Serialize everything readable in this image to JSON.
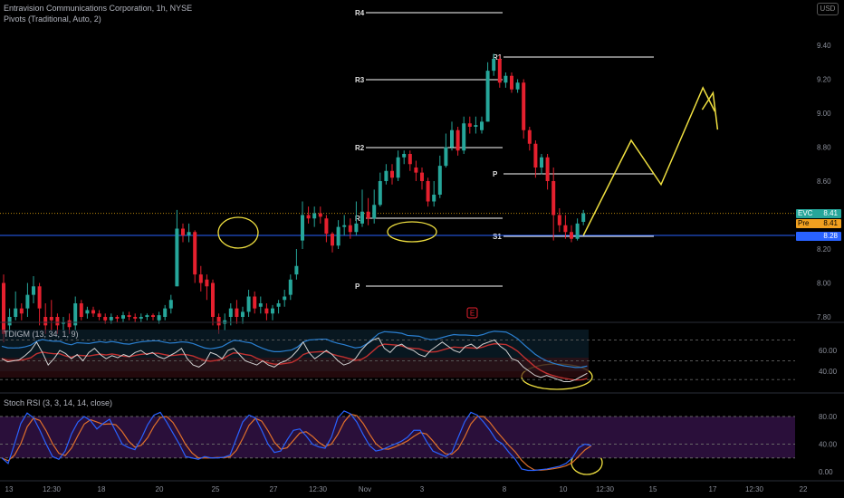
{
  "chart_title": "Entravision Communications Corporation, 1h, NYSE",
  "pivots_label": "Pivots (Traditional, Auto, 2)",
  "currency_label": "USD",
  "tdi_label": "TDIGM (13, 34, 1, 9)",
  "stoch_label": "Stoch RSI (3, 3, 14, 14, close)",
  "earnings_marker": "E",
  "tags": [
    {
      "label": "EVC",
      "value": "8.41",
      "color": "#26a69a"
    },
    {
      "label": "Pre",
      "value": "8.41",
      "color": "#f0a020"
    },
    {
      "label": "",
      "value": "8.28",
      "color": "#2962ff"
    }
  ],
  "colors": {
    "up": "#26a69a",
    "down": "#e5202e",
    "annotation": "#f0e040",
    "pivot": "#ffffff",
    "support_line": "#2962ff",
    "tdi_price": "#d0d0d0",
    "tdi_band": "#2a7fd0",
    "tdi_signal": "#c03030",
    "stoch_k": "#2962ff",
    "stoch_d": "#e0702a",
    "stoch_bg": "#2a0f3a"
  },
  "chart_data": {
    "type": "candlestick",
    "y_axis_ticks": [
      "9.40",
      "9.20",
      "9.00",
      "8.80",
      "8.60",
      "8.40",
      "8.20",
      "8.00",
      "7.80"
    ],
    "y_range": [
      7.78,
      9.48
    ],
    "x_axis_ticks": [
      "13",
      "12:30",
      "18",
      "20",
      "25",
      "27",
      "12:30",
      "Nov",
      "3",
      "8",
      "10",
      "12:30",
      "15",
      "17",
      "12:30",
      "22"
    ],
    "horizontal_lines": [
      {
        "name": "current_price",
        "value": 8.41,
        "style": "dotted"
      },
      {
        "name": "support",
        "value": 8.28,
        "style": "solid"
      }
    ],
    "pivot_sets": [
      {
        "levels": [
          {
            "label": "R4",
            "value": 9.46
          },
          {
            "label": "R3",
            "value": 9.2
          },
          {
            "label": "R2",
            "value": 8.8
          },
          {
            "label": "R1",
            "value": 8.4
          },
          {
            "label": "P",
            "value": 7.99
          }
        ]
      },
      {
        "levels": [
          {
            "label": "R1",
            "value": 9.33
          },
          {
            "label": "P",
            "value": 8.64
          },
          {
            "label": "S1",
            "value": 8.28
          }
        ]
      }
    ],
    "candles": [
      [
        8.0,
        7.7,
        8.05,
        7.65
      ],
      [
        7.75,
        7.8,
        7.85,
        7.7
      ],
      [
        7.8,
        7.85,
        7.95,
        7.78
      ],
      [
        7.85,
        7.82,
        7.88,
        7.78
      ],
      [
        7.85,
        7.93,
        8.0,
        7.8
      ],
      [
        7.93,
        7.98,
        8.04,
        7.88
      ],
      [
        7.98,
        7.85,
        8.0,
        7.75
      ],
      [
        7.8,
        7.75,
        7.88,
        7.7
      ],
      [
        7.8,
        7.78,
        7.9,
        7.72
      ],
      [
        7.8,
        7.75,
        7.82,
        7.7
      ],
      [
        7.76,
        7.77,
        7.8,
        7.72
      ],
      [
        7.78,
        7.74,
        7.82,
        7.7
      ],
      [
        7.75,
        7.88,
        7.92,
        7.72
      ],
      [
        7.88,
        7.8,
        7.9,
        7.78
      ],
      [
        7.82,
        7.84,
        7.86,
        7.79
      ],
      [
        7.84,
        7.82,
        7.86,
        7.8
      ],
      [
        7.82,
        7.8,
        7.84,
        7.78
      ],
      [
        7.8,
        7.78,
        7.82,
        7.76
      ],
      [
        7.78,
        7.8,
        7.82,
        7.76
      ],
      [
        7.8,
        7.79,
        7.81,
        7.77
      ],
      [
        7.79,
        7.81,
        7.83,
        7.77
      ],
      [
        7.81,
        7.8,
        7.83,
        7.78
      ],
      [
        7.8,
        7.79,
        7.82,
        7.77
      ],
      [
        7.79,
        7.8,
        7.82,
        7.77
      ],
      [
        7.8,
        7.81,
        7.82,
        7.78
      ],
      [
        7.81,
        7.8,
        7.82,
        7.78
      ],
      [
        7.78,
        7.81,
        7.83,
        7.76
      ],
      [
        7.8,
        7.85,
        7.87,
        7.78
      ],
      [
        7.85,
        7.9,
        7.93,
        7.82
      ],
      [
        7.98,
        8.32,
        8.43,
        7.98
      ],
      [
        8.32,
        8.28,
        8.35,
        8.24
      ],
      [
        8.28,
        8.3,
        8.35,
        8.24
      ],
      [
        8.3,
        8.05,
        8.31,
        8.0
      ],
      [
        8.05,
        8.0,
        8.1,
        7.95
      ],
      [
        8.02,
        7.98,
        8.05,
        7.9
      ],
      [
        8.0,
        7.8,
        8.02,
        7.75
      ],
      [
        7.8,
        7.75,
        7.82,
        7.7
      ],
      [
        7.76,
        7.78,
        7.82,
        7.72
      ],
      [
        7.8,
        7.85,
        7.88,
        7.75
      ],
      [
        7.85,
        7.8,
        7.9,
        7.76
      ],
      [
        7.8,
        7.83,
        7.86,
        7.76
      ],
      [
        7.83,
        7.92,
        7.96,
        7.8
      ],
      [
        7.92,
        7.85,
        7.95,
        7.82
      ],
      [
        7.86,
        7.88,
        7.92,
        7.82
      ],
      [
        7.85,
        7.82,
        7.88,
        7.78
      ],
      [
        7.82,
        7.85,
        7.87,
        7.78
      ],
      [
        7.86,
        7.88,
        7.9,
        7.82
      ],
      [
        7.9,
        7.92,
        7.96,
        7.86
      ],
      [
        7.93,
        8.02,
        8.05,
        7.9
      ],
      [
        8.05,
        8.1,
        8.2,
        8.02
      ],
      [
        8.25,
        8.4,
        8.48,
        8.2
      ],
      [
        8.4,
        8.38,
        8.45,
        8.35
      ],
      [
        8.38,
        8.41,
        8.45,
        8.33
      ],
      [
        8.41,
        8.39,
        8.45,
        8.35
      ],
      [
        8.38,
        8.29,
        8.4,
        8.24
      ],
      [
        8.29,
        8.22,
        8.3,
        8.18
      ],
      [
        8.22,
        8.33,
        8.37,
        8.2
      ],
      [
        8.33,
        8.34,
        8.4,
        8.28
      ],
      [
        8.34,
        8.3,
        8.38,
        8.26
      ],
      [
        8.3,
        8.35,
        8.48,
        8.28
      ],
      [
        8.35,
        8.42,
        8.55,
        8.33
      ],
      [
        8.42,
        8.38,
        8.5,
        8.34
      ],
      [
        8.38,
        8.46,
        8.55,
        8.35
      ],
      [
        8.46,
        8.6,
        8.65,
        8.45
      ],
      [
        8.6,
        8.66,
        8.7,
        8.58
      ],
      [
        8.66,
        8.62,
        8.7,
        8.58
      ],
      [
        8.62,
        8.74,
        8.78,
        8.6
      ],
      [
        8.74,
        8.76,
        8.78,
        8.7
      ],
      [
        8.76,
        8.7,
        8.78,
        8.66
      ],
      [
        8.68,
        8.65,
        8.72,
        8.6
      ],
      [
        8.65,
        8.6,
        8.68,
        8.55
      ],
      [
        8.6,
        8.48,
        8.62,
        8.45
      ],
      [
        8.48,
        8.52,
        8.6,
        8.45
      ],
      [
        8.52,
        8.69,
        8.75,
        8.5
      ],
      [
        8.69,
        8.8,
        8.88,
        8.68
      ],
      [
        8.8,
        8.9,
        8.95,
        8.78
      ],
      [
        8.9,
        8.78,
        8.92,
        8.75
      ],
      [
        8.78,
        8.94,
        8.98,
        8.76
      ],
      [
        8.94,
        8.92,
        8.98,
        8.88
      ],
      [
        8.92,
        8.93,
        8.98,
        8.88
      ],
      [
        8.9,
        8.95,
        8.98,
        8.88
      ],
      [
        8.95,
        9.25,
        9.3,
        8.95
      ],
      [
        9.25,
        9.32,
        9.35,
        9.22
      ],
      [
        9.32,
        9.18,
        9.34,
        9.15
      ],
      [
        9.18,
        9.22,
        9.24,
        9.15
      ],
      [
        9.22,
        9.14,
        9.24,
        9.12
      ],
      [
        9.14,
        9.18,
        9.2,
        9.12
      ],
      [
        9.18,
        8.9,
        9.2,
        8.85
      ],
      [
        8.9,
        8.82,
        8.92,
        8.78
      ],
      [
        8.82,
        8.68,
        8.84,
        8.62
      ],
      [
        8.68,
        8.74,
        8.76,
        8.64
      ],
      [
        8.74,
        8.6,
        8.76,
        8.55
      ],
      [
        8.6,
        8.4,
        8.68,
        8.25
      ],
      [
        8.4,
        8.34,
        8.44,
        8.3
      ],
      [
        8.34,
        8.3,
        8.4,
        8.26
      ],
      [
        8.3,
        8.26,
        8.34,
        8.24
      ],
      [
        8.26,
        8.35,
        8.38,
        8.25
      ],
      [
        8.36,
        8.41,
        8.43,
        8.34
      ]
    ],
    "projection_path": [
      [
        8.28,
        0
      ],
      [
        8.84,
        8
      ],
      [
        8.58,
        13
      ],
      [
        9.15,
        20
      ],
      [
        9.01,
        22
      ]
    ]
  },
  "tdi_axis_ticks": [
    "60.00",
    "40.00"
  ],
  "stoch_axis_ticks": [
    "80.00",
    "40.00",
    "0.00"
  ],
  "tdi_price_line": [
    52,
    49,
    50,
    51,
    55,
    60,
    68,
    58,
    46,
    52,
    60,
    57,
    52,
    56,
    50,
    58,
    62,
    56,
    52,
    55,
    53,
    56,
    54,
    58,
    60,
    56,
    58,
    54,
    52,
    55,
    58,
    62,
    52,
    46,
    44,
    48,
    58,
    56,
    52,
    60,
    62,
    56,
    50,
    48,
    46,
    50,
    46,
    44,
    48,
    50,
    54,
    60,
    68,
    58,
    52,
    56,
    60,
    56,
    50,
    46,
    48,
    52,
    60,
    66,
    70,
    72,
    62,
    58,
    64,
    66,
    62,
    60,
    56,
    54,
    60,
    64,
    68,
    64,
    60,
    58,
    64,
    66,
    62,
    66,
    68,
    70,
    64,
    60,
    52,
    50,
    44,
    40,
    36,
    34,
    36,
    34,
    32,
    30,
    30,
    32,
    35,
    38
  ],
  "stoch_k_line": [
    20,
    12,
    40,
    70,
    85,
    78,
    60,
    40,
    22,
    18,
    30,
    55,
    72,
    80,
    74,
    62,
    70,
    76,
    58,
    40,
    35,
    32,
    48,
    68,
    82,
    86,
    72,
    56,
    40,
    22,
    20,
    18,
    22,
    20,
    20,
    21,
    24,
    48,
    72,
    82,
    78,
    60,
    40,
    28,
    30,
    46,
    60,
    62,
    52,
    40,
    36,
    34,
    50,
    78,
    88,
    84,
    72,
    54,
    38,
    30,
    32,
    36,
    40,
    44,
    50,
    60,
    60,
    44,
    30,
    26,
    22,
    28,
    50,
    72,
    86,
    82,
    72,
    60,
    46,
    40,
    28,
    18,
    4,
    2,
    2,
    3,
    4,
    6,
    8,
    12,
    20,
    35,
    40,
    38
  ]
}
